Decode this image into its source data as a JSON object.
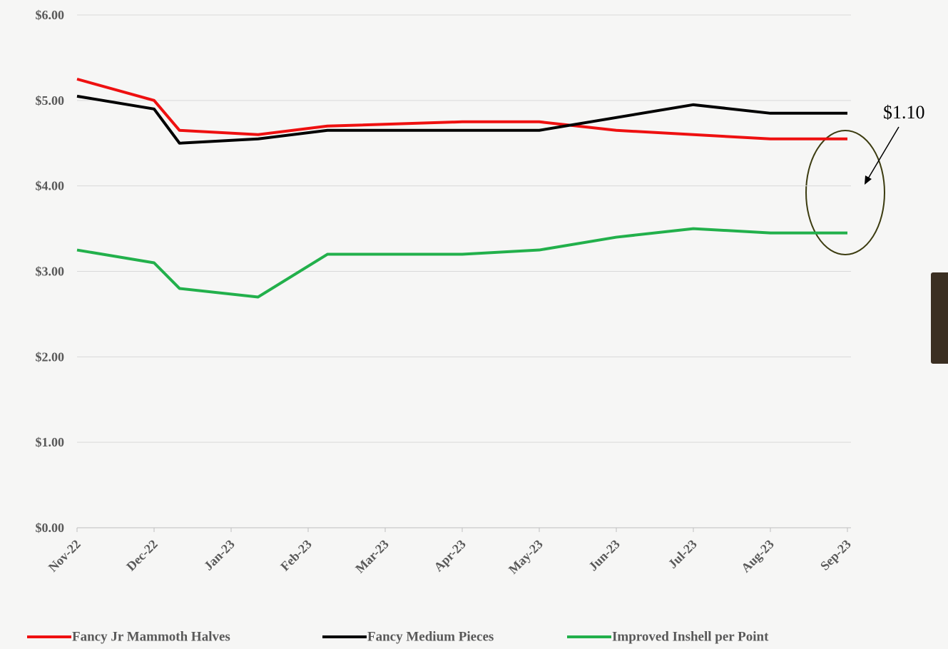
{
  "chart_data": {
    "type": "line",
    "x": [
      0,
      1,
      1.33,
      2.35,
      3.25,
      5,
      6,
      7,
      8,
      9,
      10
    ],
    "xlim": [
      0,
      10
    ],
    "xticks": [
      {
        "value": 0,
        "label": "Nov-22"
      },
      {
        "value": 1,
        "label": "Dec-22"
      },
      {
        "value": 2,
        "label": "Jan-23"
      },
      {
        "value": 3,
        "label": "Feb-23"
      },
      {
        "value": 4,
        "label": "Mar-23"
      },
      {
        "value": 5,
        "label": "Apr-23"
      },
      {
        "value": 6,
        "label": "May-23"
      },
      {
        "value": 7,
        "label": "Jun-23"
      },
      {
        "value": 8,
        "label": "Jul-23"
      },
      {
        "value": 9,
        "label": "Aug-23"
      },
      {
        "value": 10,
        "label": "Sep-23"
      }
    ],
    "ylim": [
      0,
      6
    ],
    "yticks": [
      {
        "value": 0,
        "label": "$0.00"
      },
      {
        "value": 1,
        "label": "$1.00"
      },
      {
        "value": 2,
        "label": "$2.00"
      },
      {
        "value": 3,
        "label": "$3.00"
      },
      {
        "value": 4,
        "label": "$4.00"
      },
      {
        "value": 5,
        "label": "$5.00"
      },
      {
        "value": 6,
        "label": "$6.00"
      }
    ],
    "grid": true,
    "series": [
      {
        "name": "Fancy Jr Mammoth Halves",
        "color": "#ee1010",
        "values": [
          5.25,
          5.0,
          4.65,
          4.6,
          4.7,
          4.75,
          4.75,
          4.65,
          4.6,
          4.55,
          4.55
        ]
      },
      {
        "name": "Fancy Medium Pieces",
        "color": "#000000",
        "values": [
          5.05,
          4.9,
          4.5,
          4.55,
          4.65,
          4.65,
          4.65,
          4.8,
          4.95,
          4.85,
          4.85
        ]
      },
      {
        "name": "Improved Inshell per Point",
        "color": "#22b04b",
        "values": [
          3.25,
          3.1,
          2.8,
          2.7,
          3.2,
          3.2,
          3.25,
          3.4,
          3.5,
          3.45,
          3.45
        ]
      }
    ],
    "annotation": "$1.10"
  }
}
